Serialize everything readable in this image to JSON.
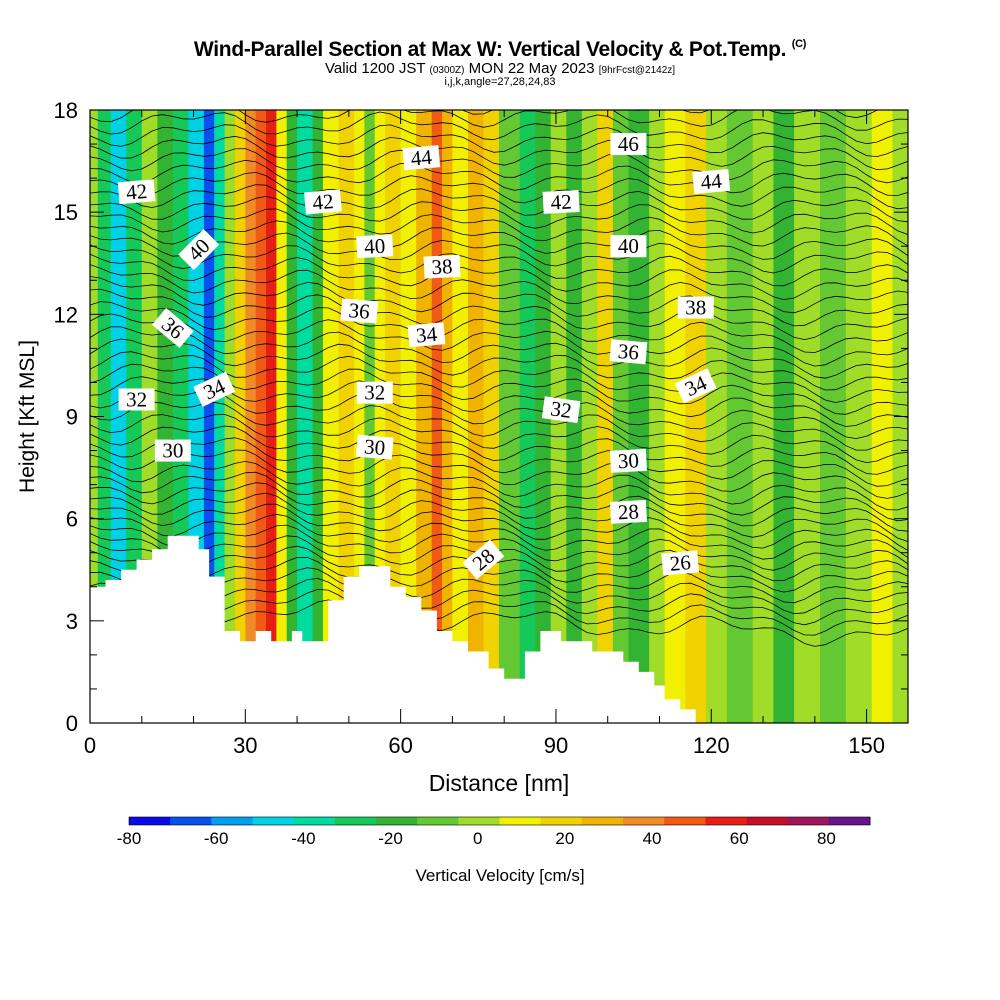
{
  "header": {
    "title": "Wind-Parallel Section at Max W: Vertical Velocity & Pot.Temp.",
    "copyright": "(C)",
    "valid_pre": "Valid 1200 JST",
    "valid_z": "(0300Z)",
    "valid_post": "MON 22 May 2023",
    "forecast": "[9hrFcst@2142z]",
    "indices": "i,j,k,angle=27,28,24,83"
  },
  "chart_data": {
    "type": "heatmap",
    "xlabel": "Distance [nm]",
    "ylabel": "Height [Kft MSL]",
    "xlim": [
      0,
      158
    ],
    "ylim": [
      0,
      18
    ],
    "xticks": [
      0,
      30,
      60,
      90,
      120,
      150
    ],
    "yticks": [
      0,
      3,
      6,
      9,
      12,
      15,
      18
    ],
    "colorbar": {
      "label": "Vertical Velocity [cm/s]",
      "ticks": [
        -80,
        -60,
        -40,
        -20,
        0,
        20,
        40,
        60,
        80
      ],
      "bounds": [
        -80,
        -70,
        -60,
        -50,
        -40,
        -30,
        -20,
        -10,
        0,
        10,
        20,
        30,
        40,
        50,
        60,
        70,
        80,
        90
      ],
      "colors": [
        "#0a0ae6",
        "#0a50f0",
        "#00a0f0",
        "#00d2e6",
        "#00dca0",
        "#14c85a",
        "#32b432",
        "#64c832",
        "#a0dc28",
        "#f0f000",
        "#f0d200",
        "#f0b400",
        "#f08c28",
        "#f05a14",
        "#e61e14",
        "#c80f28",
        "#a0145a",
        "#64148c"
      ]
    },
    "isentropes": [
      26,
      28,
      30,
      32,
      34,
      36,
      38,
      40,
      42,
      44,
      46
    ],
    "contour_labels": [
      {
        "text": "42",
        "x": 9,
        "y": 15.6,
        "angle": -5
      },
      {
        "text": "40",
        "x": 21,
        "y": 13.9,
        "angle": -45
      },
      {
        "text": "36",
        "x": 16,
        "y": 11.6,
        "angle": 40
      },
      {
        "text": "32",
        "x": 9,
        "y": 9.5,
        "angle": 0
      },
      {
        "text": "34",
        "x": 24,
        "y": 9.8,
        "angle": -25
      },
      {
        "text": "30",
        "x": 16,
        "y": 8.0,
        "angle": 0
      },
      {
        "text": "42",
        "x": 45,
        "y": 15.3,
        "angle": -5
      },
      {
        "text": "44",
        "x": 64,
        "y": 16.6,
        "angle": -5
      },
      {
        "text": "40",
        "x": 55,
        "y": 14.0,
        "angle": -3
      },
      {
        "text": "38",
        "x": 68,
        "y": 13.4,
        "angle": -3
      },
      {
        "text": "36",
        "x": 52,
        "y": 12.1,
        "angle": 5
      },
      {
        "text": "34",
        "x": 65,
        "y": 11.4,
        "angle": -5
      },
      {
        "text": "32",
        "x": 55,
        "y": 9.7,
        "angle": 0
      },
      {
        "text": "30",
        "x": 55,
        "y": 8.1,
        "angle": 5
      },
      {
        "text": "28",
        "x": 76,
        "y": 4.8,
        "angle": -40
      },
      {
        "text": "32",
        "x": 91,
        "y": 9.2,
        "angle": 8
      },
      {
        "text": "46",
        "x": 104,
        "y": 17.0,
        "angle": 0
      },
      {
        "text": "42",
        "x": 91,
        "y": 15.3,
        "angle": -3
      },
      {
        "text": "40",
        "x": 104,
        "y": 14.0,
        "angle": 0
      },
      {
        "text": "36",
        "x": 104,
        "y": 10.9,
        "angle": 5
      },
      {
        "text": "30",
        "x": 104,
        "y": 7.7,
        "angle": -3
      },
      {
        "text": "28",
        "x": 104,
        "y": 6.2,
        "angle": -3
      },
      {
        "text": "44",
        "x": 120,
        "y": 15.9,
        "angle": -5
      },
      {
        "text": "38",
        "x": 117,
        "y": 12.2,
        "angle": 0
      },
      {
        "text": "34",
        "x": 117,
        "y": 9.9,
        "angle": -25
      },
      {
        "text": "26",
        "x": 114,
        "y": 4.7,
        "angle": -5
      }
    ],
    "terrain": [
      [
        0,
        4.0
      ],
      [
        3,
        4.0
      ],
      [
        3,
        4.2
      ],
      [
        6,
        4.2
      ],
      [
        6,
        4.5
      ],
      [
        9,
        4.5
      ],
      [
        9,
        4.8
      ],
      [
        12,
        4.8
      ],
      [
        12,
        5.1
      ],
      [
        15,
        5.1
      ],
      [
        15,
        5.5
      ],
      [
        21,
        5.5
      ],
      [
        21,
        5.1
      ],
      [
        23,
        5.1
      ],
      [
        23,
        4.3
      ],
      [
        26,
        4.3
      ],
      [
        26,
        2.7
      ],
      [
        29,
        2.7
      ],
      [
        29,
        2.4
      ],
      [
        32,
        2.4
      ],
      [
        32,
        2.7
      ],
      [
        35,
        2.7
      ],
      [
        35,
        2.4
      ],
      [
        39,
        2.4
      ],
      [
        39,
        2.7
      ],
      [
        41,
        2.7
      ],
      [
        41,
        2.4
      ],
      [
        46,
        2.4
      ],
      [
        46,
        3.6
      ],
      [
        49,
        3.6
      ],
      [
        49,
        4.3
      ],
      [
        52,
        4.3
      ],
      [
        52,
        4.6
      ],
      [
        58,
        4.6
      ],
      [
        58,
        4.0
      ],
      [
        61,
        4.0
      ],
      [
        61,
        3.7
      ],
      [
        64,
        3.7
      ],
      [
        64,
        3.3
      ],
      [
        67,
        3.3
      ],
      [
        67,
        2.7
      ],
      [
        70,
        2.7
      ],
      [
        70,
        2.4
      ],
      [
        73,
        2.4
      ],
      [
        73,
        2.1
      ],
      [
        77,
        2.1
      ],
      [
        77,
        1.6
      ],
      [
        80,
        1.6
      ],
      [
        80,
        1.3
      ],
      [
        84,
        1.3
      ],
      [
        84,
        2.1
      ],
      [
        87,
        2.1
      ],
      [
        87,
        2.7
      ],
      [
        91,
        2.7
      ],
      [
        91,
        2.4
      ],
      [
        97,
        2.4
      ],
      [
        97,
        2.1
      ],
      [
        103,
        2.1
      ],
      [
        103,
        1.8
      ],
      [
        106,
        1.8
      ],
      [
        106,
        1.5
      ],
      [
        109,
        1.5
      ],
      [
        109,
        1.1
      ],
      [
        111,
        1.1
      ],
      [
        111,
        0.7
      ],
      [
        114,
        0.7
      ],
      [
        114,
        0.4
      ],
      [
        117,
        0.4
      ],
      [
        117,
        0
      ],
      [
        158,
        0
      ]
    ],
    "vv_bands": [
      {
        "x0": 0,
        "x1": 1.5,
        "w": 5
      },
      {
        "x0": 1.5,
        "x1": 4,
        "w": -25
      },
      {
        "x0": 4,
        "x1": 7,
        "w": -45
      },
      {
        "x0": 7,
        "x1": 10,
        "w": -25
      },
      {
        "x0": 10,
        "x1": 13,
        "w": 5
      },
      {
        "x0": 13,
        "x1": 16,
        "w": -15
      },
      {
        "x0": 16,
        "x1": 19,
        "w": -25
      },
      {
        "x0": 19,
        "x1": 22,
        "w": -45
      },
      {
        "x0": 22,
        "x1": 24,
        "w": -65
      },
      {
        "x0": 24,
        "x1": 26,
        "w": -35
      },
      {
        "x0": 26,
        "x1": 28,
        "w": 5
      },
      {
        "x0": 28,
        "x1": 30,
        "w": 25
      },
      {
        "x0": 30,
        "x1": 32,
        "w": 45
      },
      {
        "x0": 32,
        "x1": 34,
        "w": 55
      },
      {
        "x0": 34,
        "x1": 36,
        "w": 65
      },
      {
        "x0": 36,
        "x1": 38,
        "w": 15
      },
      {
        "x0": 38,
        "x1": 40,
        "w": -15
      },
      {
        "x0": 40,
        "x1": 43,
        "w": -35
      },
      {
        "x0": 43,
        "x1": 45,
        "w": -15
      },
      {
        "x0": 45,
        "x1": 48,
        "w": 15
      },
      {
        "x0": 48,
        "x1": 51,
        "w": 25
      },
      {
        "x0": 51,
        "x1": 53,
        "w": 15
      },
      {
        "x0": 53,
        "x1": 55,
        "w": -5
      },
      {
        "x0": 55,
        "x1": 57,
        "w": 15
      },
      {
        "x0": 57,
        "x1": 60,
        "w": 25
      },
      {
        "x0": 60,
        "x1": 63,
        "w": 15
      },
      {
        "x0": 63,
        "x1": 66,
        "w": 35
      },
      {
        "x0": 66,
        "x1": 68,
        "w": 55
      },
      {
        "x0": 68,
        "x1": 70,
        "w": 35
      },
      {
        "x0": 70,
        "x1": 73,
        "w": 15
      },
      {
        "x0": 73,
        "x1": 76,
        "w": 35
      },
      {
        "x0": 76,
        "x1": 79,
        "w": 25
      },
      {
        "x0": 79,
        "x1": 83,
        "w": -5
      },
      {
        "x0": 83,
        "x1": 86,
        "w": -25
      },
      {
        "x0": 86,
        "x1": 89,
        "w": -15
      },
      {
        "x0": 89,
        "x1": 92,
        "w": 5
      },
      {
        "x0": 92,
        "x1": 95,
        "w": -15
      },
      {
        "x0": 95,
        "x1": 98,
        "w": 5
      },
      {
        "x0": 98,
        "x1": 101,
        "w": 25
      },
      {
        "x0": 101,
        "x1": 104,
        "w": -5
      },
      {
        "x0": 104,
        "x1": 108,
        "w": -15
      },
      {
        "x0": 108,
        "x1": 111,
        "w": 5
      },
      {
        "x0": 111,
        "x1": 115,
        "w": 15
      },
      {
        "x0": 115,
        "x1": 119,
        "w": 25
      },
      {
        "x0": 119,
        "x1": 123,
        "w": 5
      },
      {
        "x0": 123,
        "x1": 128,
        "w": -5
      },
      {
        "x0": 128,
        "x1": 132,
        "w": 5
      },
      {
        "x0": 132,
        "x1": 136,
        "w": -15
      },
      {
        "x0": 136,
        "x1": 141,
        "w": 5
      },
      {
        "x0": 141,
        "x1": 146,
        "w": -5
      },
      {
        "x0": 146,
        "x1": 151,
        "w": 5
      },
      {
        "x0": 151,
        "x1": 155,
        "w": 15
      },
      {
        "x0": 155,
        "x1": 158,
        "w": 5
      }
    ]
  }
}
